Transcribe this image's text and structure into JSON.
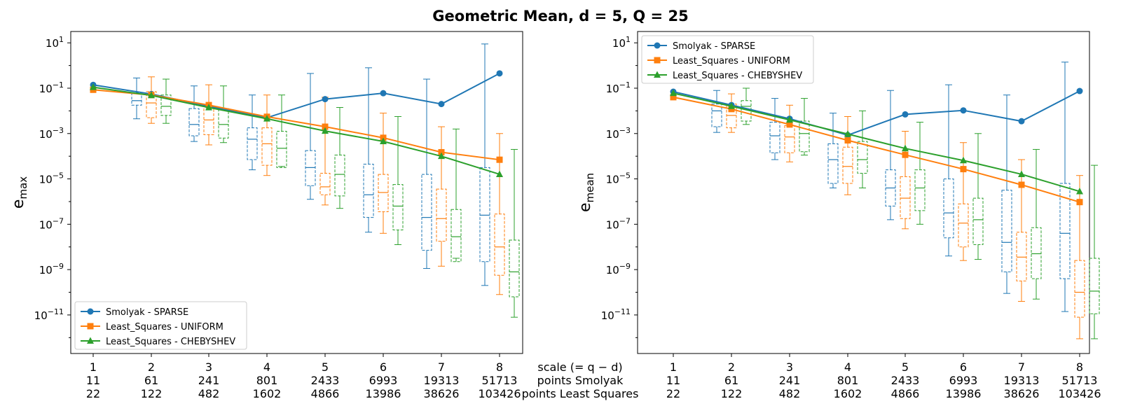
{
  "title": "Geometric Mean, d = 5, Q = 25",
  "shared_x": {
    "scale_label": "scale (= q − d)",
    "smolyak_points_label": "points Smolyak",
    "ls_points_label": "points Least Squares",
    "scale": [
      "1",
      "2",
      "3",
      "4",
      "5",
      "6",
      "7",
      "8"
    ],
    "smolyak_points": [
      "11",
      "61",
      "241",
      "801",
      "2433",
      "6993",
      "19313",
      "51713"
    ],
    "ls_points": [
      "22",
      "122",
      "482",
      "1602",
      "4866",
      "13986",
      "38626",
      "103426"
    ]
  },
  "chart_data": [
    {
      "type": "line",
      "ylabel": "e_max",
      "yscale": "log",
      "ylim_exp": [
        -12.7,
        1.5
      ],
      "yticks_exp": [
        1,
        -1,
        -3,
        -5,
        -7,
        -9,
        -11
      ],
      "x": [
        1,
        2,
        3,
        4,
        5,
        6,
        7,
        8
      ],
      "legend_loc": "lower-left",
      "series": [
        {
          "name": "Smolyak - SPARSE",
          "color": "#1f77b4",
          "marker": "circle",
          "values": [
            0.14,
            0.055,
            0.016,
            0.005,
            0.033,
            0.06,
            0.02,
            0.45
          ],
          "boxes": [
            [
              -2.35,
              -1.75,
              -1.55,
              -1.2,
              -0.55
            ],
            [
              -3.35,
              -3.1,
              -2.6,
              -1.9,
              -0.9
            ],
            [
              -4.6,
              -4.15,
              -3.25,
              -2.75,
              -1.3
            ],
            [
              -5.9,
              -5.3,
              -4.5,
              -3.75,
              -0.35
            ],
            [
              -7.35,
              -6.7,
              -5.7,
              -4.35,
              -0.1
            ],
            [
              -8.95,
              -8.15,
              -6.7,
              -4.8,
              -0.6
            ],
            [
              -9.7,
              -8.65,
              -6.6,
              -4.5,
              0.95
            ]
          ]
        },
        {
          "name": "Least_Squares - UNIFORM",
          "color": "#ff7f0e",
          "marker": "square",
          "values": [
            0.085,
            0.05,
            0.018,
            0.0055,
            0.002,
            0.00065,
            0.00015,
            7e-05
          ],
          "boxes": [
            [
              -2.55,
              -2.3,
              -1.65,
              -1.15,
              -0.5
            ],
            [
              -3.5,
              -3.05,
              -2.4,
              -1.8,
              -0.85
            ],
            [
              -4.85,
              -4.4,
              -3.45,
              -2.75,
              -1.3
            ],
            [
              -6.15,
              -5.7,
              -5.35,
              -4.75,
              -1.4
            ],
            [
              -7.4,
              -6.45,
              -5.6,
              -4.8,
              -2.1
            ],
            [
              -8.85,
              -7.75,
              -6.75,
              -5.45,
              -2.7
            ],
            [
              -10.1,
              -9.25,
              -8,
              -6.55,
              -3.0
            ]
          ]
        },
        {
          "name": "Least_Squares - CHEBYSHEV",
          "color": "#2ca02c",
          "marker": "triangle",
          "values": [
            0.11,
            0.048,
            0.014,
            0.0045,
            0.0013,
            0.00045,
            0.0001,
            1.6e-05
          ],
          "boxes": [
            [
              -2.55,
              -2.2,
              -1.8,
              -1.3,
              -0.6
            ],
            [
              -3.4,
              -3.2,
              -2.6,
              -1.9,
              -0.9
            ],
            [
              -4.45,
              -4.5,
              -3.65,
              -2.9,
              -1.3
            ],
            [
              -6.3,
              -5.75,
              -4.8,
              -3.95,
              -1.85
            ],
            [
              -7.9,
              -7.25,
              -6.2,
              -5.25,
              -2.25
            ],
            [
              -8.5,
              -8.65,
              -7.55,
              -6.35,
              -2.8
            ],
            [
              -11.1,
              -10.2,
              -9.1,
              -7.7,
              -3.7
            ]
          ]
        }
      ]
    },
    {
      "type": "line",
      "ylabel": "e_mean",
      "yscale": "log",
      "ylim_exp": [
        -12.7,
        1.5
      ],
      "yticks_exp": [
        1,
        -1,
        -3,
        -5,
        -7,
        -9,
        -11
      ],
      "x": [
        1,
        2,
        3,
        4,
        5,
        6,
        7,
        8
      ],
      "legend_loc": "top-left",
      "series": [
        {
          "name": "Smolyak - SPARSE",
          "color": "#1f77b4",
          "marker": "circle",
          "values": [
            0.07,
            0.018,
            0.0045,
            0.00085,
            0.007,
            0.0105,
            0.0035,
            0.075
          ],
          "boxes": [
            [
              -2.95,
              -2.7,
              -2,
              -1.7,
              -1.1
            ],
            [
              -4.15,
              -3.85,
              -3.1,
              -2.5,
              -1.45
            ],
            [
              -5.4,
              -5.2,
              -4.15,
              -3.45,
              -2.1
            ],
            [
              -6.8,
              -6.2,
              -5.4,
              -4.6,
              -1.1
            ],
            [
              -8.4,
              -7.6,
              -6.5,
              -5,
              -0.85
            ],
            [
              -10.05,
              -9.1,
              -7.8,
              -5.5,
              -1.3
            ],
            [
              -10.85,
              -9.4,
              -7.4,
              -5.2,
              0.15
            ]
          ]
        },
        {
          "name": "Least_Squares - UNIFORM",
          "color": "#ff7f0e",
          "marker": "square",
          "values": [
            0.04,
            0.012,
            0.0025,
            0.0005,
            0.000115,
            2.7e-05,
            5.5e-06,
            9.5e-07
          ],
          "boxes": [
            [
              -2.95,
              -2.75,
              -2.2,
              -1.7,
              -1.25
            ],
            [
              -4.25,
              -3.85,
              -3.15,
              -2.65,
              -1.75
            ],
            [
              -5.7,
              -5.2,
              -4.45,
              -3.6,
              -2.25
            ],
            [
              -7.2,
              -6.75,
              -5.85,
              -4.9,
              -2.9
            ],
            [
              -8.6,
              -8,
              -6.95,
              -6.1,
              -3.4
            ],
            [
              -10.4,
              -9.5,
              -8.45,
              -7.35,
              -4.15
            ],
            [
              -12.05,
              -11.1,
              -10.0,
              -8.6,
              -4.85
            ]
          ]
        },
        {
          "name": "Least_Squares - CHEBYSHEV",
          "color": "#2ca02c",
          "marker": "triangle",
          "values": [
            0.06,
            0.016,
            0.004,
            0.00095,
            0.00022,
            6.5e-05,
            1.6e-05,
            2.8e-06
          ],
          "boxes": [
            [
              -2.6,
              -2.45,
              -1.8,
              -1.55,
              -1.0
            ],
            [
              -3.95,
              -3.8,
              -3.0,
              -2.45,
              -1.45
            ],
            [
              -5.4,
              -4.75,
              -4.15,
              -3.35,
              -2.0
            ],
            [
              -7.0,
              -6.4,
              -5.4,
              -4.6,
              -2.5
            ],
            [
              -8.55,
              -7.9,
              -6.8,
              -5.85,
              -3.0
            ],
            [
              -10.3,
              -9.4,
              -8.3,
              -7.15,
              -3.7
            ],
            [
              -12.05,
              -10.95,
              -9.95,
              -8.5,
              -4.4
            ]
          ]
        }
      ]
    }
  ]
}
